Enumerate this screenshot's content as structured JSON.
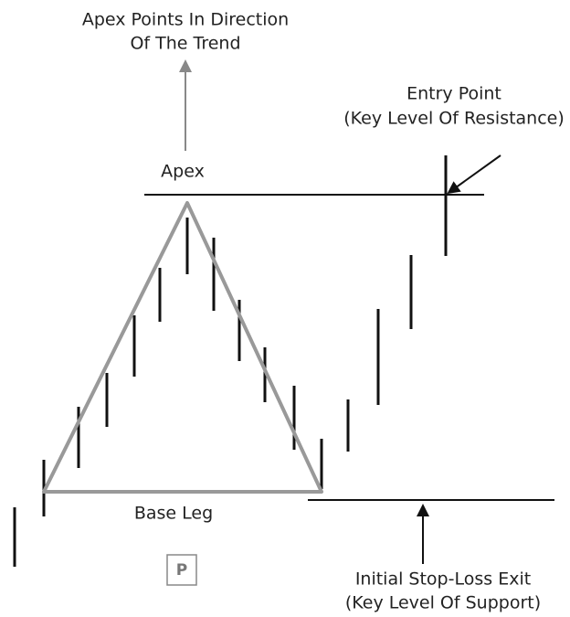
{
  "title": {
    "line1": "Apex Points In Direction",
    "line2": "Of The Trend"
  },
  "entry": {
    "line1": "Entry Point",
    "line2": "(Key Level Of Resistance)"
  },
  "apex_label": "Apex",
  "base_label": "Base Leg",
  "pattern_badge": "P",
  "stop": {
    "line1": "Initial Stop-Loss Exit",
    "line2": "(Key Level Of Support)"
  }
}
